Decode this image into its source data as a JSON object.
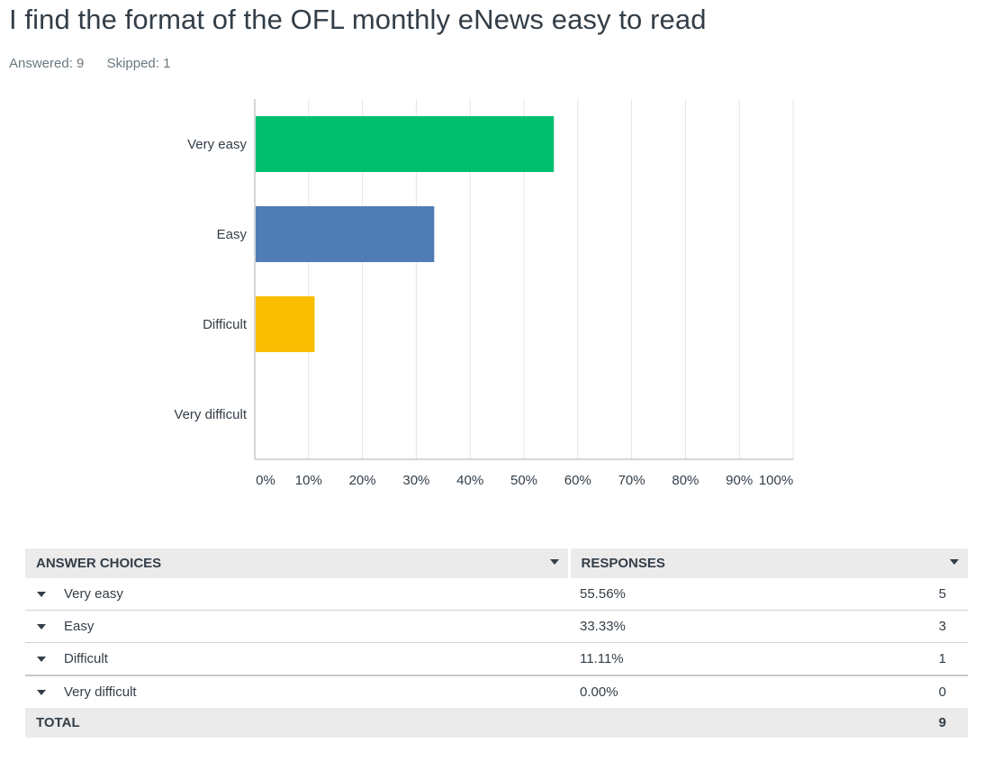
{
  "question": {
    "title": "I find the format of the OFL monthly eNews easy to read",
    "answered_label": "Answered: 9",
    "skipped_label": "Skipped: 1"
  },
  "chart_data": {
    "type": "bar",
    "orientation": "horizontal",
    "title": "",
    "xlabel": "",
    "ylabel": "",
    "categories": [
      "Very easy",
      "Easy",
      "Difficult",
      "Very difficult"
    ],
    "values": [
      55.56,
      33.33,
      11.11,
      0
    ],
    "colors": [
      "#00bf6f",
      "#507cb6",
      "#f9be00",
      "#6bc8cd"
    ],
    "x_ticks": [
      "0%",
      "10%",
      "20%",
      "30%",
      "40%",
      "50%",
      "60%",
      "70%",
      "80%",
      "90%",
      "100%"
    ],
    "xlim": [
      0,
      100
    ],
    "grid": true,
    "legend": "none"
  },
  "table": {
    "headers": {
      "choices": "ANSWER CHOICES",
      "responses": "RESPONSES"
    },
    "rows": [
      {
        "choice": "Very easy",
        "percent": "55.56%",
        "count": "5"
      },
      {
        "choice": "Easy",
        "percent": "33.33%",
        "count": "3"
      },
      {
        "choice": "Difficult",
        "percent": "11.11%",
        "count": "1"
      },
      {
        "choice": "Very difficult",
        "percent": "0.00%",
        "count": "0"
      }
    ],
    "total_label": "TOTAL",
    "total_count": "9"
  }
}
